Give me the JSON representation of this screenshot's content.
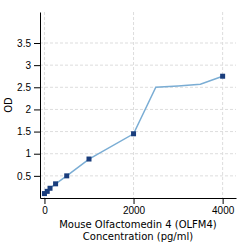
{
  "chart_data": {
    "type": "line",
    "xlabel": "Mouse Olfactomedin 4 (OLFM4)\nConcentration (pg/ml)",
    "ylabel": "OD",
    "xlim": [
      -100,
      4300
    ],
    "ylim": [
      0,
      4.2
    ],
    "xticks": [
      0,
      2000,
      4000
    ],
    "yticks": [
      0.5,
      1,
      1.5,
      2,
      2.5,
      3,
      3.5
    ],
    "grid": true,
    "series": [
      {
        "type": "line",
        "color": "#7aadd4",
        "x": [
          0,
          62.5,
          125,
          250,
          500,
          1000,
          2000,
          2500,
          3000,
          3500,
          4000
        ],
        "values": [
          0.1,
          0.15,
          0.22,
          0.32,
          0.5,
          0.88,
          1.45,
          2.5,
          2.53,
          2.57,
          2.75
        ]
      },
      {
        "type": "scatter",
        "color": "#1a3d7c",
        "marker": "square",
        "x": [
          0,
          62.5,
          125,
          250,
          500,
          1000,
          2000,
          4000
        ],
        "values": [
          0.1,
          0.15,
          0.22,
          0.32,
          0.5,
          0.88,
          1.45,
          2.75
        ]
      }
    ]
  }
}
